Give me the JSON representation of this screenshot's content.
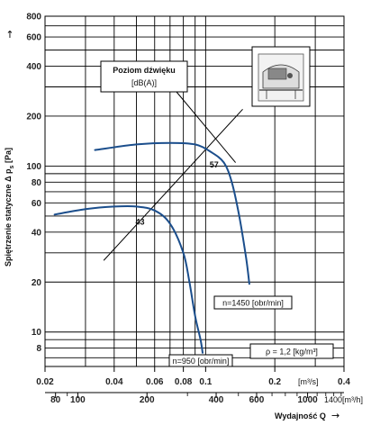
{
  "chart_data": {
    "type": "line",
    "title": "",
    "ylabel": "Spiętrzenie statyczne Δ p_s [Pa]",
    "ylabel_prefix": "Spiętrzenie statyczne Δ p",
    "ylabel_sub": "s",
    "ylabel_suffix": " [Pa]",
    "xlabel": "Wydajność Q",
    "y_scale": "log",
    "x_scale": "log",
    "ylim": [
      6.2,
      800
    ],
    "y_ticks": [
      8,
      10,
      20,
      40,
      60,
      80,
      100,
      200,
      400,
      600,
      800
    ],
    "y_extra_gridlines": [
      7,
      9,
      30,
      50,
      70,
      90,
      300,
      500,
      700
    ],
    "x_m3s": {
      "unit": "[m³/s]",
      "range": [
        0.02,
        0.4
      ],
      "ticks": [
        0.02,
        0.04,
        0.06,
        0.08,
        0.1,
        0.2,
        0.4
      ],
      "tick_labels": [
        "0.02",
        "0.04",
        "0.06",
        "0.08",
        "0.1",
        "0.2",
        "0.4"
      ],
      "gridlines": [
        0.03,
        0.04,
        0.05,
        0.06,
        0.07,
        0.08,
        0.09,
        0.1,
        0.2,
        0.3
      ]
    },
    "x_m3h": {
      "unit": "1400[m³/h]",
      "ticks": [
        80,
        100,
        200,
        400,
        600,
        1000
      ],
      "tick_labels": [
        "80",
        "100",
        "200",
        "400",
        "600",
        "1000"
      ],
      "minor": [
        90,
        300,
        500,
        700,
        800,
        900,
        1100,
        1200,
        1300,
        1400
      ]
    },
    "series": [
      {
        "name": "n=1450 [obr/min]",
        "x": [
          0.033,
          0.05,
          0.07,
          0.09,
          0.105,
          0.12,
          0.13,
          0.14,
          0.15,
          0.155
        ],
        "y": [
          125,
          135,
          138,
          135,
          122,
          105,
          80,
          50,
          28,
          19.5
        ]
      },
      {
        "name": "n=950 [obr/min]",
        "x": [
          0.022,
          0.03,
          0.04,
          0.05,
          0.06,
          0.07,
          0.08,
          0.085,
          0.09,
          0.095,
          0.097
        ],
        "y": [
          51,
          55,
          57,
          57,
          54,
          45,
          30,
          20,
          12.5,
          9,
          7.5
        ]
      }
    ],
    "sound_level_line": {
      "label": "Poziom dźwięku\n[dB(A)]",
      "label_line1": "Poziom dźwięku",
      "label_line2": "[dB(A)]",
      "points": [
        {
          "x": 0.05,
          "y": 53,
          "value": "43"
        },
        {
          "x": 0.105,
          "y": 117,
          "value": "57"
        }
      ],
      "line_from": {
        "x": 0.036,
        "y": 27
      },
      "line_to": {
        "x": 0.145,
        "y": 220
      }
    },
    "annotations": {
      "density": "ρ = 1,2 [kg/m³]"
    }
  }
}
